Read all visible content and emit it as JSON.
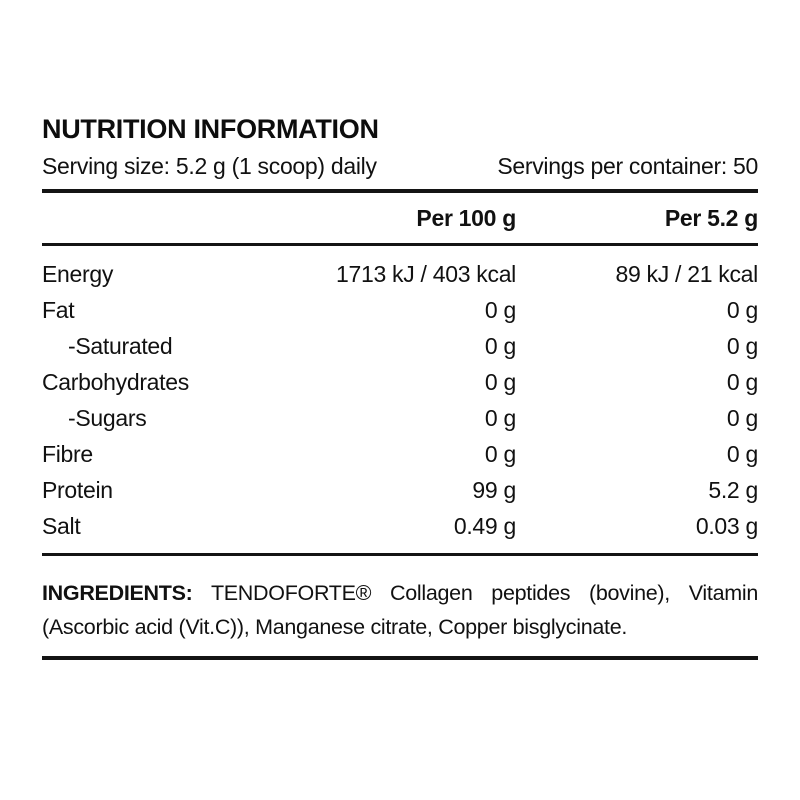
{
  "header": {
    "title": "NUTRITION INFORMATION",
    "serving_size": "Serving size: 5.2 g (1 scoop) daily",
    "servings_per_container": "Servings per container: 50"
  },
  "table": {
    "columns": [
      "",
      "Per 100 g",
      "Per 5.2 g"
    ],
    "rows": [
      {
        "label": "Energy",
        "per_100g": "1713 kJ / 403 kcal",
        "per_serving": "89 kJ / 21 kcal"
      },
      {
        "label": "Fat",
        "per_100g": "0 g",
        "per_serving": "0 g"
      },
      {
        "label": "-Saturated",
        "per_100g": "0 g",
        "per_serving": "0 g"
      },
      {
        "label": "Carbohydrates",
        "per_100g": "0 g",
        "per_serving": "0 g"
      },
      {
        "label": "-Sugars",
        "per_100g": "0 g",
        "per_serving": "0 g"
      },
      {
        "label": "Fibre",
        "per_100g": "0 g",
        "per_serving": "0 g"
      },
      {
        "label": "Protein",
        "per_100g": "99 g",
        "per_serving": "5.2 g"
      },
      {
        "label": "Salt",
        "per_100g": "0.49 g",
        "per_serving": "0.03 g"
      }
    ]
  },
  "ingredients": {
    "label": "INGREDIENTS:",
    "line1_rest": "TENDOFORTE® Collagen peptides (bovine), Vitamin",
    "line2": "(Ascorbic acid (Vit.C)), Manganese citrate, Copper bisglycinate."
  },
  "colors": {
    "text": "#111111",
    "rule": "#141414",
    "background": "#ffffff"
  }
}
